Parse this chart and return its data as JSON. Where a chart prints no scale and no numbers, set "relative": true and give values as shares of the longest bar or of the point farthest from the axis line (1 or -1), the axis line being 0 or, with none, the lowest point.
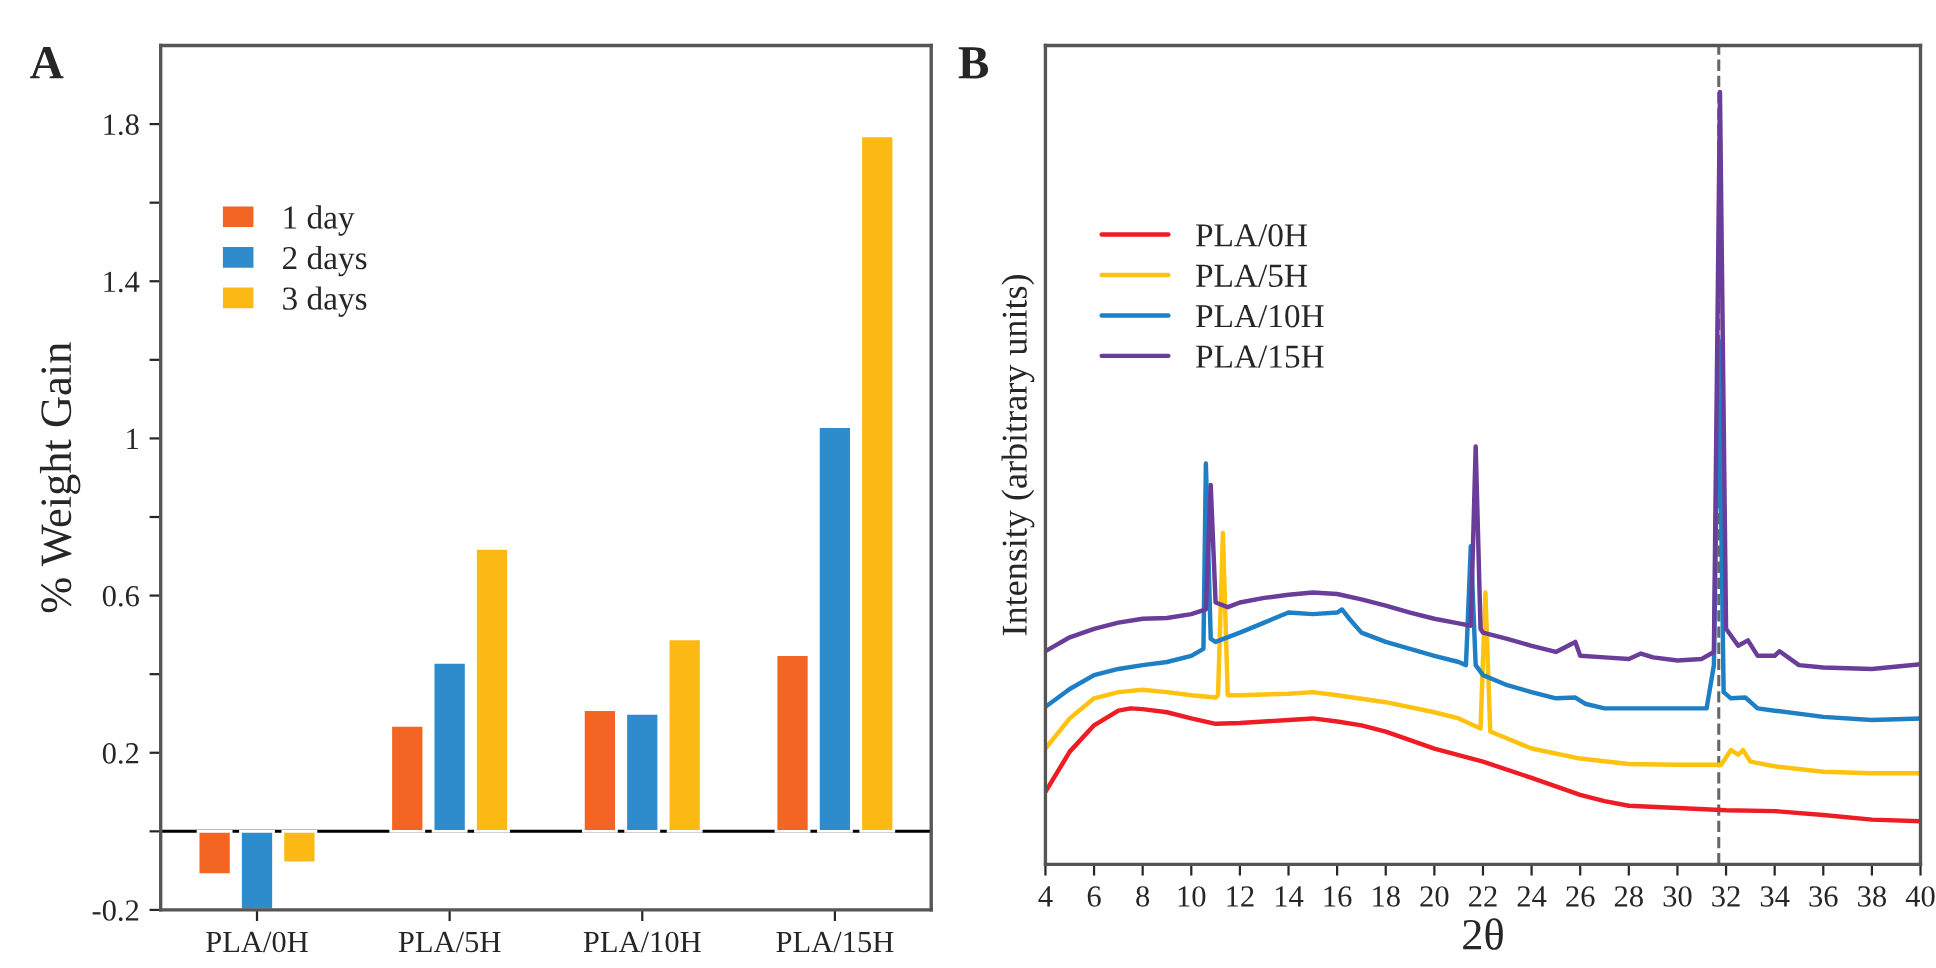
{
  "chart_data": [
    {
      "type": "bar",
      "title": "A",
      "ylabel": "% Weight Gain",
      "categories": [
        "PLA/0H",
        "PLA/5H",
        "PLA/10H",
        "PLA/15H"
      ],
      "series": [
        {
          "name": "1 day",
          "color": "#f26522",
          "values": [
            -0.11,
            0.27,
            0.31,
            0.45
          ]
        },
        {
          "name": "2 days",
          "color": "#2e8bcc",
          "values": [
            -0.2,
            0.43,
            0.3,
            1.03
          ]
        },
        {
          "name": "3 days",
          "color": "#fdb913",
          "values": [
            -0.08,
            0.72,
            0.49,
            1.77
          ]
        }
      ],
      "ylim": [
        -0.2,
        2.0
      ],
      "yticks": [
        -0.2,
        {
          "value": 0,
          "label": null
        },
        0.2,
        {
          "value": 0.4,
          "label": null
        },
        0.6,
        {
          "value": 0.8,
          "label": null
        },
        1,
        {
          "value": 1.2,
          "label": null
        },
        1.4,
        {
          "value": 1.6,
          "label": null
        },
        1.8
      ],
      "ref_lines": [
        {
          "axis": "y",
          "value": 0,
          "color": "#000000",
          "line_style": "solid"
        }
      ],
      "legend": "top left",
      "grid": false
    },
    {
      "type": "line",
      "title": "B",
      "xlabel": "2θ",
      "ylabel": "Intensity (arbitrary units)",
      "relative": true,
      "xlim": [
        4,
        40
      ],
      "xticks": [
        4,
        6,
        8,
        10,
        12,
        14,
        16,
        18,
        20,
        22,
        24,
        26,
        28,
        30,
        32,
        34,
        36,
        38,
        40
      ],
      "series": [
        {
          "name": "PLA/0H",
          "color": "#ee1c25",
          "x": [
            4,
            5,
            6,
            7,
            7.5,
            8,
            9,
            10,
            11,
            12,
            14,
            15,
            16,
            17,
            18,
            20,
            22,
            24,
            26,
            27,
            28,
            30,
            32,
            34,
            36,
            38,
            40
          ],
          "values": [
            0.094,
            0.146,
            0.18,
            0.199,
            0.202,
            0.201,
            0.197,
            0.189,
            0.182,
            0.183,
            0.187,
            0.189,
            0.185,
            0.18,
            0.172,
            0.15,
            0.133,
            0.112,
            0.09,
            0.082,
            0.076,
            0.073,
            0.07,
            0.069,
            0.064,
            0.058,
            0.056
          ]
        },
        {
          "name": "PLA/5H",
          "color": "#ffc20e",
          "x": [
            4,
            5,
            6,
            7,
            8,
            9,
            10,
            11,
            11.1,
            11.3,
            11.5,
            12,
            14,
            15,
            16,
            18,
            20,
            21,
            21.9,
            22.1,
            22.3,
            23,
            24,
            26,
            28,
            30,
            31.8,
            32.2,
            32.5,
            32.7,
            33,
            34,
            36,
            38,
            40
          ],
          "values": [
            0.15,
            0.189,
            0.215,
            0.223,
            0.226,
            0.223,
            0.219,
            0.216,
            0.219,
            0.429,
            0.219,
            0.219,
            0.221,
            0.223,
            0.219,
            0.21,
            0.197,
            0.189,
            0.176,
            0.352,
            0.172,
            0.163,
            0.15,
            0.137,
            0.13,
            0.129,
            0.129,
            0.148,
            0.142,
            0.148,
            0.133,
            0.127,
            0.12,
            0.118,
            0.118
          ]
        },
        {
          "name": "PLA/10H",
          "color": "#1f7fc4",
          "x": [
            4,
            5,
            6,
            7,
            8,
            9,
            10,
            10.5,
            10.6,
            10.8,
            11,
            12,
            13,
            14,
            15,
            16,
            16.2,
            16.5,
            17,
            18,
            19,
            20,
            21,
            21.3,
            21.5,
            21.7,
            22,
            23,
            24,
            25,
            25.8,
            26.2,
            27,
            28,
            30,
            31.2,
            31.5,
            31.7,
            31.9,
            32.2,
            32.8,
            33.3,
            34,
            36,
            38,
            40
          ],
          "values": [
            0.204,
            0.227,
            0.245,
            0.253,
            0.258,
            0.262,
            0.27,
            0.279,
            0.519,
            0.292,
            0.288,
            0.3,
            0.313,
            0.326,
            0.324,
            0.326,
            0.33,
            0.318,
            0.3,
            0.288,
            0.279,
            0.27,
            0.262,
            0.258,
            0.412,
            0.258,
            0.245,
            0.232,
            0.223,
            0.215,
            0.216,
            0.208,
            0.202,
            0.202,
            0.202,
            0.202,
            0.258,
            0.678,
            0.223,
            0.215,
            0.216,
            0.202,
            0.199,
            0.191,
            0.187,
            0.189
          ]
        },
        {
          "name": "PLA/15H",
          "color": "#6a3d9a",
          "x": [
            4,
            5,
            6,
            7,
            8,
            9,
            10,
            10.6,
            10.8,
            11,
            11.5,
            12,
            13,
            14,
            15,
            16,
            17,
            18,
            19,
            20,
            21,
            21.5,
            21.7,
            21.9,
            22,
            23,
            24,
            25,
            25.8,
            26,
            27,
            28,
            28.5,
            29,
            30,
            31,
            31.5,
            31.75,
            32,
            32.5,
            32.9,
            33.3,
            34,
            34.2,
            35,
            36,
            38,
            40
          ],
          "values": [
            0.276,
            0.294,
            0.305,
            0.313,
            0.318,
            0.319,
            0.324,
            0.33,
            0.491,
            0.339,
            0.333,
            0.339,
            0.345,
            0.349,
            0.352,
            0.35,
            0.343,
            0.335,
            0.326,
            0.318,
            0.312,
            0.309,
            0.541,
            0.305,
            0.3,
            0.292,
            0.283,
            0.275,
            0.288,
            0.27,
            0.268,
            0.266,
            0.273,
            0.268,
            0.264,
            0.266,
            0.275,
            1,
            0.305,
            0.283,
            0.29,
            0.27,
            0.27,
            0.276,
            0.258,
            0.255,
            0.253,
            0.259
          ]
        }
      ],
      "ref_lines": [
        {
          "axis": "x",
          "value": 31.7,
          "color": "#666666",
          "line_style": "dashed"
        }
      ],
      "tick_labels": "x",
      "legend": "top left",
      "grid": false,
      "marker": "none",
      "line_style": "solid"
    }
  ]
}
